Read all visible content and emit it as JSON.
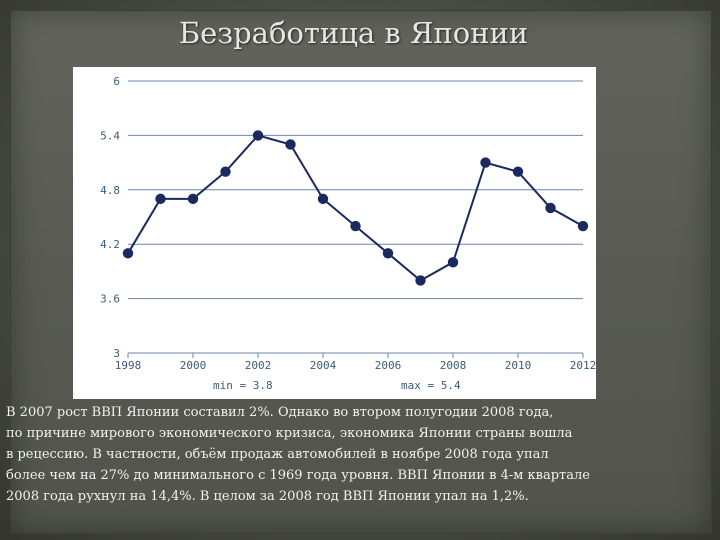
{
  "slide": {
    "title": "Безработица в Японии",
    "text_lines": [
      "В 2007 рост ВВП Японии составил 2%. Однако во втором полугодии 2008 года,",
      " по причине мирового экономического кризиса, экономика Японии страны вошла",
      " в рецессию. В частности, объём продаж автомобилей в ноябре 2008 года упал",
      "более чем на 27% до минимального с 1969 года уровня. ВВП Японии в 4-м квартале",
      "2008 года рухнул на 14,4%. В целом за 2008 год ВВП Японии упал на 1,2%."
    ]
  },
  "chart_data": {
    "type": "line",
    "title": "",
    "xlabel": "",
    "ylabel": "",
    "x": [
      1998,
      1999,
      2000,
      2001,
      2002,
      2003,
      2004,
      2005,
      2006,
      2007,
      2008,
      2009,
      2010,
      2011,
      2012
    ],
    "y": [
      4.1,
      4.7,
      4.7,
      5.0,
      5.4,
      5.3,
      4.7,
      4.4,
      4.1,
      3.8,
      4.0,
      5.1,
      5.0,
      4.6,
      4.4
    ],
    "xlim": [
      1998,
      2012
    ],
    "ylim": [
      3,
      6
    ],
    "x_ticks": [
      "1998",
      "2000",
      "2002",
      "2004",
      "2006",
      "2008",
      "2010",
      "2012"
    ],
    "y_ticks": [
      "6",
      "5.4",
      "4.8",
      "4.2",
      "3.6",
      "3"
    ],
    "min_label": "min = 3.8",
    "max_label": "max = 5.4",
    "grid": true,
    "colors": {
      "line": "#1a2a5e",
      "grid": "#6a86a8",
      "tick_text": "#3d5a7a"
    }
  }
}
